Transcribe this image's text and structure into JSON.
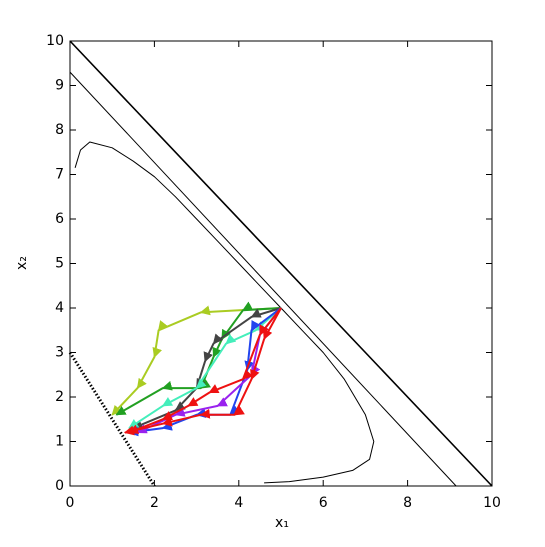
{
  "chart_data": {
    "type": "line",
    "xlabel": "x₁",
    "ylabel": "x₂",
    "xlim": [
      0,
      10
    ],
    "ylim": [
      0,
      10
    ],
    "xticks": [
      0,
      2,
      4,
      6,
      8,
      10
    ],
    "yticks": [
      0,
      1,
      2,
      3,
      4,
      5,
      6,
      7,
      8,
      9,
      10
    ],
    "series": [
      {
        "color": "#000000",
        "linewidth": 1.6,
        "x": [
          0,
          10
        ],
        "values": [
          10,
          0
        ]
      },
      {
        "color": "#000000",
        "linewidth": 1,
        "x": [
          0,
          9.15
        ],
        "values": [
          9.3,
          0
        ]
      },
      {
        "color": "#000000",
        "linewidth": 1,
        "x": [
          0.12,
          0.25,
          0.47,
          1,
          1.5,
          2,
          2.5,
          3,
          3.5,
          4,
          4.5,
          5,
          5.5,
          6,
          6.5,
          7,
          7.2,
          7.1,
          6.7,
          6,
          5.2,
          4.6
        ],
        "values": [
          7.15,
          7.55,
          7.73,
          7.6,
          7.3,
          6.95,
          6.5,
          6.0,
          5.5,
          5.0,
          4.5,
          4.0,
          3.5,
          3.0,
          2.4,
          1.6,
          1.0,
          0.6,
          0.35,
          0.2,
          0.1,
          0.07
        ]
      },
      {
        "color": "#000000",
        "linewidth": 3,
        "linestyle": "dotted",
        "x": [
          0,
          2
        ],
        "values": [
          3,
          0
        ]
      },
      {
        "color": "#aacc22",
        "linewidth": 2,
        "arrows": true,
        "x": [
          5,
          3.1,
          2.1,
          2.0,
          1.6,
          1.0
        ],
        "values": [
          4,
          3.9,
          3.5,
          2.9,
          2.2,
          1.6
        ]
      },
      {
        "color": "#22a022",
        "linewidth": 2,
        "arrows": true,
        "x": [
          5,
          4.1,
          3.6,
          3.4,
          3.1,
          2.2,
          1.1
        ],
        "values": [
          4,
          3.95,
          3.3,
          2.9,
          2.2,
          2.2,
          1.6
        ]
      },
      {
        "color": "#444444",
        "linewidth": 2,
        "arrows": true,
        "x": [
          5,
          4.3,
          3.4,
          3.2,
          3.0,
          2.5,
          1.5
        ],
        "values": [
          4,
          3.8,
          3.2,
          2.8,
          2.2,
          1.7,
          1.3
        ]
      },
      {
        "color": "#44eebb",
        "linewidth": 2,
        "arrows": true,
        "x": [
          5,
          4.4,
          3.7,
          3.0,
          2.2,
          1.4
        ],
        "values": [
          4,
          3.5,
          3.2,
          2.2,
          1.8,
          1.3
        ]
      },
      {
        "color": "#2244ee",
        "linewidth": 2,
        "arrows": true,
        "x": [
          5,
          4.3,
          4.2,
          3.8,
          3.0,
          2.2,
          1.4
        ],
        "values": [
          4,
          3.5,
          2.6,
          1.6,
          1.6,
          1.3,
          1.2
        ]
      },
      {
        "color": "#9922ee",
        "linewidth": 2,
        "arrows": true,
        "x": [
          5,
          4.5,
          4.3,
          3.5,
          2.5,
          1.6
        ],
        "values": [
          4,
          3.4,
          2.5,
          1.8,
          1.6,
          1.2
        ]
      },
      {
        "color": "#ee1111",
        "linewidth": 2,
        "arrows": true,
        "x": [
          5,
          4.5,
          4.1,
          3.3,
          2.8,
          2.2,
          1.4
        ],
        "values": [
          4,
          3.4,
          2.4,
          2.1,
          1.8,
          1.5,
          1.2
        ]
      },
      {
        "color": "#ee1111",
        "linewidth": 2,
        "arrows": true,
        "x": [
          5,
          4.6,
          4.3,
          3.9,
          3.1,
          2.2,
          1.3
        ],
        "values": [
          4,
          3.3,
          2.4,
          1.6,
          1.6,
          1.4,
          1.2
        ]
      }
    ]
  }
}
